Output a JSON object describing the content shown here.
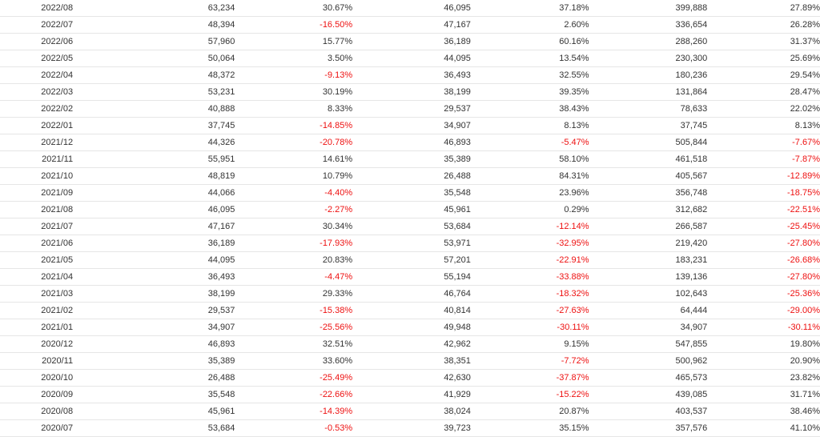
{
  "table": {
    "rows": [
      [
        "2022/08",
        "63,234",
        "30.67%",
        "46,095",
        "37.18%",
        "399,888",
        "27.89%"
      ],
      [
        "2022/07",
        "48,394",
        "-16.50%",
        "47,167",
        "2.60%",
        "336,654",
        "26.28%"
      ],
      [
        "2022/06",
        "57,960",
        "15.77%",
        "36,189",
        "60.16%",
        "288,260",
        "31.37%"
      ],
      [
        "2022/05",
        "50,064",
        "3.50%",
        "44,095",
        "13.54%",
        "230,300",
        "25.69%"
      ],
      [
        "2022/04",
        "48,372",
        "-9.13%",
        "36,493",
        "32.55%",
        "180,236",
        "29.54%"
      ],
      [
        "2022/03",
        "53,231",
        "30.19%",
        "38,199",
        "39.35%",
        "131,864",
        "28.47%"
      ],
      [
        "2022/02",
        "40,888",
        "8.33%",
        "29,537",
        "38.43%",
        "78,633",
        "22.02%"
      ],
      [
        "2022/01",
        "37,745",
        "-14.85%",
        "34,907",
        "8.13%",
        "37,745",
        "8.13%"
      ],
      [
        "2021/12",
        "44,326",
        "-20.78%",
        "46,893",
        "-5.47%",
        "505,844",
        "-7.67%"
      ],
      [
        "2021/11",
        "55,951",
        "14.61%",
        "35,389",
        "58.10%",
        "461,518",
        "-7.87%"
      ],
      [
        "2021/10",
        "48,819",
        "10.79%",
        "26,488",
        "84.31%",
        "405,567",
        "-12.89%"
      ],
      [
        "2021/09",
        "44,066",
        "-4.40%",
        "35,548",
        "23.96%",
        "356,748",
        "-18.75%"
      ],
      [
        "2021/08",
        "46,095",
        "-2.27%",
        "45,961",
        "0.29%",
        "312,682",
        "-22.51%"
      ],
      [
        "2021/07",
        "47,167",
        "30.34%",
        "53,684",
        "-12.14%",
        "266,587",
        "-25.45%"
      ],
      [
        "2021/06",
        "36,189",
        "-17.93%",
        "53,971",
        "-32.95%",
        "219,420",
        "-27.80%"
      ],
      [
        "2021/05",
        "44,095",
        "20.83%",
        "57,201",
        "-22.91%",
        "183,231",
        "-26.68%"
      ],
      [
        "2021/04",
        "36,493",
        "-4.47%",
        "55,194",
        "-33.88%",
        "139,136",
        "-27.80%"
      ],
      [
        "2021/03",
        "38,199",
        "29.33%",
        "46,764",
        "-18.32%",
        "102,643",
        "-25.36%"
      ],
      [
        "2021/02",
        "29,537",
        "-15.38%",
        "40,814",
        "-27.63%",
        "64,444",
        "-29.00%"
      ],
      [
        "2021/01",
        "34,907",
        "-25.56%",
        "49,948",
        "-30.11%",
        "34,907",
        "-30.11%"
      ],
      [
        "2020/12",
        "46,893",
        "32.51%",
        "42,962",
        "9.15%",
        "547,855",
        "19.80%"
      ],
      [
        "2020/11",
        "35,389",
        "33.60%",
        "38,351",
        "-7.72%",
        "500,962",
        "20.90%"
      ],
      [
        "2020/10",
        "26,488",
        "-25.49%",
        "42,630",
        "-37.87%",
        "465,573",
        "23.82%"
      ],
      [
        "2020/09",
        "35,548",
        "-22.66%",
        "41,929",
        "-15.22%",
        "439,085",
        "31.71%"
      ],
      [
        "2020/08",
        "45,961",
        "-14.39%",
        "38,024",
        "20.87%",
        "403,537",
        "38.46%"
      ],
      [
        "2020/07",
        "53,684",
        "-0.53%",
        "39,723",
        "35.15%",
        "357,576",
        "41.10%"
      ]
    ]
  },
  "colors": {
    "negative": "#ee1111",
    "text": "#333333",
    "border": "#e6e6e6"
  }
}
